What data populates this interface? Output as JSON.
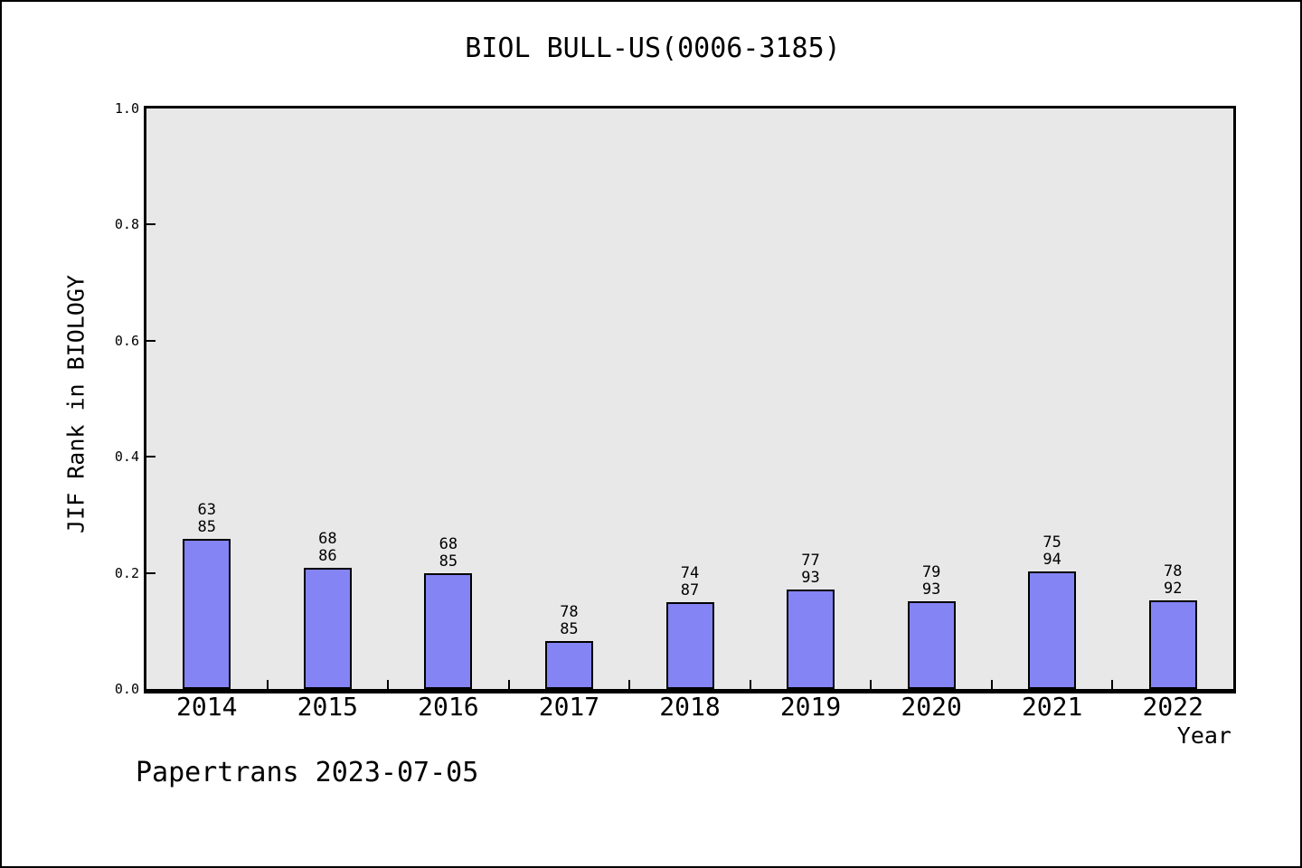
{
  "chart_data": {
    "type": "bar",
    "title": "BIOL BULL-US(0006-3185)",
    "xlabel": "Year",
    "ylabel": "JIF Rank in BIOLOGY",
    "categories": [
      "2014",
      "2015",
      "2016",
      "2017",
      "2018",
      "2019",
      "2020",
      "2021",
      "2022"
    ],
    "series": [
      {
        "name": "JIF Rank in BIOLOGY",
        "rank": [
          63,
          68,
          68,
          78,
          74,
          77,
          79,
          75,
          78
        ],
        "total": [
          85,
          86,
          85,
          85,
          87,
          93,
          93,
          94,
          92
        ],
        "values": [
          0.2588,
          0.2093,
          0.2,
          0.0824,
          0.1494,
          0.172,
          0.1505,
          0.2021,
          0.1522
        ]
      }
    ],
    "bar_label_format": "rank over total, stacked above each bar",
    "ylim": [
      0.0,
      1.0
    ],
    "yticks": [
      "0.0",
      "0.2",
      "0.4",
      "0.6",
      "0.8",
      "1.0"
    ],
    "grid": false,
    "legend": null,
    "colors": {
      "bar_fill": "#8484f5",
      "bar_edge": "#000000",
      "plot_bg": "#e8e8e8",
      "figure_bg": "#ffffff",
      "text": "#000000"
    }
  },
  "footer": {
    "text": "Papertrans 2023-07-05"
  }
}
